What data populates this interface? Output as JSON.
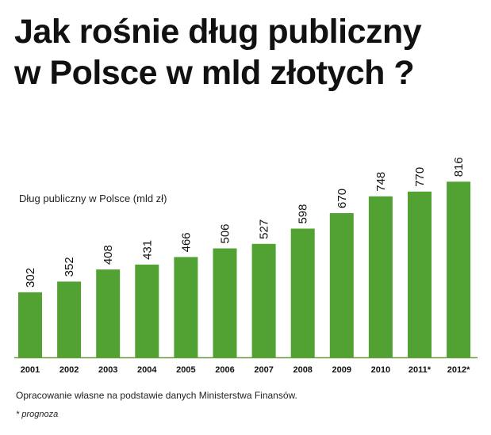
{
  "title_line1": "Jak rośnie dług  publiczny",
  "title_line2": "w Polsce w mld złotych ?",
  "subtitle": "Dług publiczny w Polsce  (mld zł)",
  "source_note": "Opracowanie własne na podstawie danych Ministerstwa Finansów.",
  "footnote": "* prognoza",
  "colors": {
    "bar": "#52a233",
    "axis": "#6c9b3f"
  },
  "chart_data": {
    "type": "bar",
    "categories": [
      "2001",
      "2002",
      "2003",
      "2004",
      "2005",
      "2006",
      "2007",
      "2008",
      "2009",
      "2010",
      "2011*",
      "2012*"
    ],
    "values": [
      302,
      352,
      408,
      431,
      466,
      506,
      527,
      598,
      670,
      748,
      770,
      816
    ],
    "data_labels": [
      "302",
      "352",
      "408",
      "431",
      "466",
      "506",
      "527",
      "598",
      "670",
      "748",
      "770",
      "816"
    ],
    "ylim": [
      0,
      1000
    ],
    "grid": false,
    "legend": "none"
  }
}
